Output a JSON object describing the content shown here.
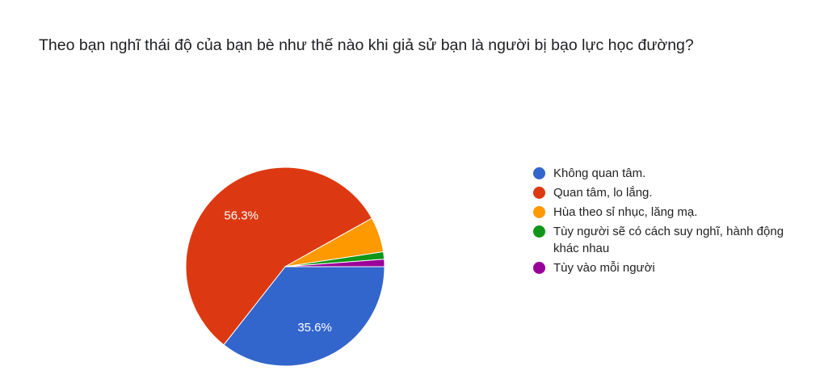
{
  "question": {
    "title": "Theo bạn nghĩ thái độ của bạn bè như thế nào khi giả sử bạn là người bị bạo lực học đường?"
  },
  "chart_data": {
    "type": "pie",
    "title": "Theo bạn nghĩ thái độ của bạn bè như thế nào khi giả sử bạn là người bị bạo lực học đường?",
    "legend_position": "right",
    "slices": [
      {
        "label": "Không quan tâm.",
        "value": 35.6,
        "color": "#3366cc",
        "data_label": "35.6%"
      },
      {
        "label": "Quan tâm, lo lắng.",
        "value": 56.3,
        "color": "#dc3912",
        "data_label": "56.3%"
      },
      {
        "label": "Hùa theo sỉ nhục, lăng mạ.",
        "value": 5.7,
        "color": "#ff9900",
        "data_label": ""
      },
      {
        "label": "Tùy người sẽ có cách suy nghĩ, hành động khác nhau",
        "value": 1.2,
        "color": "#109618",
        "data_label": ""
      },
      {
        "label": "Tùy vào mỗi người",
        "value": 1.2,
        "color": "#990099",
        "data_label": ""
      }
    ]
  }
}
